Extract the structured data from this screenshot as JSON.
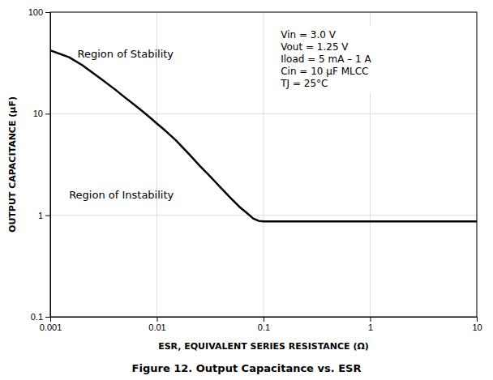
{
  "chart_data": {
    "type": "line",
    "log": true,
    "grid": true,
    "title": "Figure 12. Output Capacitance vs. ESR",
    "x_label": "ESR, EQUIVALENT SERIES RESISTANCE (Ω)",
    "y_label": "OUTPUT CAPACITANCE (μF)",
    "xlim": [
      0.001,
      10
    ],
    "ylim": [
      0.1,
      100
    ],
    "xticks": [
      0.001,
      0.01,
      0.1,
      1,
      10
    ],
    "yticks": [
      0.1,
      1,
      10,
      100
    ],
    "color": "#000000",
    "x": [
      0.001,
      0.0015,
      0.002,
      0.003,
      0.004,
      0.005,
      0.006,
      0.007,
      0.008,
      0.009,
      0.01,
      0.012,
      0.015,
      0.018,
      0.02,
      0.025,
      0.03,
      0.035,
      0.04,
      0.05,
      0.06,
      0.07,
      0.08,
      0.09,
      0.1,
      0.12,
      0.15,
      0.2,
      0.5,
      1.0,
      10.0
    ],
    "values": [
      42,
      36,
      30,
      22,
      17.5,
      14.5,
      12.5,
      11.0,
      9.8,
      8.8,
      8.0,
      6.8,
      5.5,
      4.5,
      4.0,
      3.1,
      2.55,
      2.15,
      1.85,
      1.45,
      1.2,
      1.05,
      0.93,
      0.88,
      0.87,
      0.87,
      0.87,
      0.87,
      0.87,
      0.87,
      0.87
    ],
    "annotations": [
      {
        "text": "Region of Stability",
        "x": 0.0018,
        "y": 38
      },
      {
        "text": "Region of Instability",
        "x": 0.0015,
        "y": 1.55
      },
      {
        "lines": [
          "Vin = 3.0 V",
          "Vout = 1.25 V",
          "Iload = 5 mA – 1 A",
          "Cin = 10 μF MLCC",
          "TJ = 25°C"
        ],
        "x": 0.145,
        "y": 65
      }
    ]
  }
}
